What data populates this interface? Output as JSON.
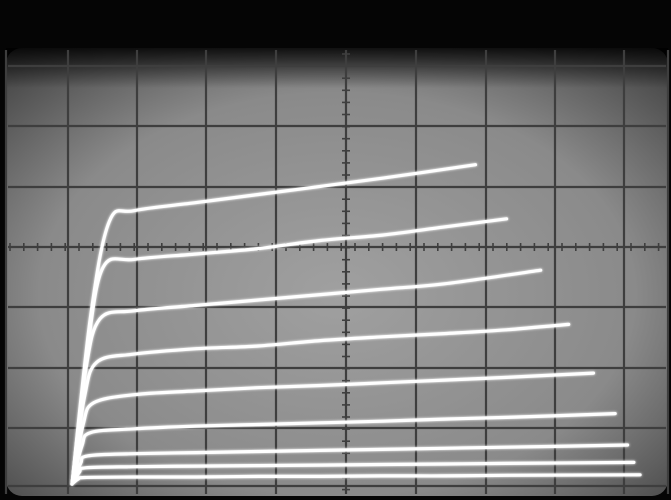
{
  "image": {
    "kind": "photo",
    "subject": "oscilloscope-screen",
    "style": "monochrome",
    "graticule": {
      "major_divisions_x": 10,
      "major_divisions_y": 8,
      "minor_ticks_on_center_axes": true
    }
  },
  "colors": {
    "bezel": "#050505",
    "screen": "#8c8c8c",
    "screen_shadow": "#2a2a2a",
    "grid": "#3e3e3e",
    "trace": "#ffffff"
  },
  "chart_data": {
    "type": "line",
    "title": "",
    "xlabel": "",
    "ylabel": "",
    "xlim": [
      0,
      10
    ],
    "ylim": [
      0,
      8
    ],
    "grid": true,
    "legend": "none",
    "curve_params": {
      "knee_sharpness": [
        1.05,
        0.75,
        0.6,
        0.5,
        0.45,
        0.4,
        0.35,
        0.3,
        0.25
      ]
    },
    "series": [
      {
        "x": [
          0.0,
          0.3,
          0.6,
          1.0,
          2.0,
          3.0,
          4.0,
          5.0,
          6.5
        ],
        "y": [
          0.0,
          3.1,
          4.85,
          5.05,
          5.2,
          5.35,
          5.5,
          5.65,
          5.9
        ]
      },
      {
        "x": [
          0.0,
          0.25,
          0.5,
          1.0,
          2.0,
          3.0,
          4.0,
          5.0,
          6.0,
          7.0
        ],
        "y": [
          0.0,
          2.5,
          4.0,
          4.15,
          4.25,
          4.35,
          4.5,
          4.6,
          4.75,
          4.9
        ]
      },
      {
        "x": [
          0.0,
          0.22,
          0.45,
          1.0,
          2.0,
          3.0,
          4.0,
          5.0,
          6.0,
          7.55
        ],
        "y": [
          0.0,
          2.1,
          3.05,
          3.2,
          3.3,
          3.4,
          3.5,
          3.6,
          3.7,
          3.95
        ]
      },
      {
        "x": [
          0.0,
          0.2,
          0.4,
          1.0,
          2.0,
          3.0,
          4.0,
          5.0,
          6.0,
          7.0,
          8.0
        ],
        "y": [
          0.0,
          1.6,
          2.25,
          2.4,
          2.5,
          2.55,
          2.65,
          2.72,
          2.78,
          2.85,
          2.95
        ]
      },
      {
        "x": [
          0.0,
          0.18,
          0.35,
          1.0,
          2.0,
          3.0,
          4.0,
          5.0,
          6.0,
          7.0,
          8.4
        ],
        "y": [
          0.0,
          1.1,
          1.5,
          1.65,
          1.72,
          1.78,
          1.82,
          1.87,
          1.92,
          1.97,
          2.05
        ]
      },
      {
        "x": [
          0.0,
          0.16,
          0.3,
          1.0,
          2.0,
          3.0,
          4.0,
          5.0,
          6.0,
          7.0,
          8.75
        ],
        "y": [
          0.0,
          0.7,
          0.95,
          1.02,
          1.07,
          1.1,
          1.13,
          1.16,
          1.2,
          1.23,
          1.3
        ]
      },
      {
        "x": [
          0.0,
          0.14,
          0.25,
          1.0,
          2.0,
          3.0,
          4.0,
          5.0,
          6.0,
          7.0,
          8.95
        ],
        "y": [
          0.0,
          0.38,
          0.52,
          0.56,
          0.58,
          0.6,
          0.62,
          0.64,
          0.66,
          0.68,
          0.72
        ]
      },
      {
        "x": [
          0.0,
          0.12,
          0.22,
          1.0,
          2.0,
          3.0,
          4.0,
          5.0,
          6.0,
          7.0,
          9.05
        ],
        "y": [
          0.0,
          0.22,
          0.3,
          0.32,
          0.33,
          0.34,
          0.35,
          0.36,
          0.37,
          0.38,
          0.4
        ]
      },
      {
        "x": [
          0.0,
          0.1,
          0.2,
          1.0,
          2.0,
          3.0,
          4.0,
          5.0,
          6.0,
          7.0,
          9.15
        ],
        "y": [
          0.0,
          0.09,
          0.12,
          0.13,
          0.13,
          0.14,
          0.14,
          0.15,
          0.15,
          0.16,
          0.17
        ]
      }
    ]
  }
}
